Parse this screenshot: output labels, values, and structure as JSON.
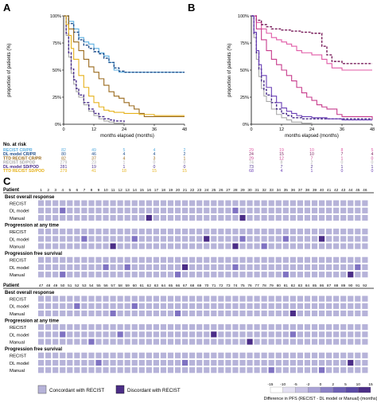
{
  "panels": {
    "A": {
      "letter": "A",
      "chart_data": {
        "type": "line",
        "ylabel": "proportion of patients (%)",
        "xlabel": "months elapsed (months)",
        "xlim": [
          0,
          48
        ],
        "ylim": [
          0,
          100
        ],
        "xticks": [
          "0",
          "12",
          "24",
          "36",
          "48"
        ],
        "yticks": [
          "0%",
          "25%",
          "50%",
          "75%",
          "100%"
        ],
        "series": [
          {
            "name": "RECIST CR/PR",
            "color": "#5aaee0",
            "dash": false,
            "x": [
              0,
              2,
              4,
              6,
              8,
              10,
              12,
              14,
              16,
              18,
              20,
              22,
              24,
              26,
              30,
              36,
              40,
              48
            ],
            "y": [
              100,
              95,
              88,
              80,
              76,
              74,
              70,
              66,
              63,
              57,
              50,
              48,
              48,
              48,
              48,
              48,
              48,
              48
            ]
          },
          {
            "name": "DL model CR/PR",
            "color": "#1f4e8c",
            "dash": true,
            "x": [
              0,
              2,
              4,
              6,
              8,
              10,
              12,
              14,
              16,
              18,
              20,
              22,
              24,
              30,
              36,
              40,
              48
            ],
            "y": [
              100,
              93,
              85,
              78,
              73,
              70,
              67,
              65,
              61,
              57,
              52,
              49,
              48,
              48,
              48,
              48,
              48
            ]
          },
          {
            "name": "TTD RECIST CR/PR",
            "color": "#9a6a1c",
            "dash": false,
            "x": [
              0,
              2,
              4,
              6,
              8,
              10,
              12,
              14,
              16,
              18,
              20,
              22,
              24,
              26,
              28,
              30,
              32,
              36,
              40,
              48
            ],
            "y": [
              100,
              88,
              76,
              68,
              60,
              53,
              48,
              42,
              36,
              30,
              26,
              24,
              20,
              17,
              14,
              10,
              7,
              7,
              7,
              7
            ]
          },
          {
            "name": "RECIST SD/PD",
            "color": "#a9a9a9",
            "dash": false,
            "x": [
              0,
              1,
              2,
              3,
              4,
              5,
              6,
              8,
              10,
              12,
              14,
              16,
              18,
              20,
              24
            ],
            "y": [
              100,
              82,
              62,
              47,
              37,
              30,
              25,
              18,
              12,
              8,
              5,
              3,
              2,
              1,
              0
            ]
          },
          {
            "name": "DL model SD/PD",
            "color": "#4a2d8a",
            "dash": true,
            "x": [
              0,
              1,
              2,
              3,
              4,
              5,
              6,
              8,
              10,
              12,
              14,
              16,
              18,
              20,
              24
            ],
            "y": [
              100,
              84,
              66,
              51,
              41,
              33,
              27,
              20,
              14,
              10,
              7,
              5,
              4,
              3,
              2
            ]
          },
          {
            "name": "TTD RECIST SD/POD",
            "color": "#e6b21c",
            "dash": false,
            "x": [
              0,
              1,
              2,
              3,
              4,
              6,
              8,
              10,
              12,
              14,
              16,
              18,
              20,
              24,
              30,
              36,
              48
            ],
            "y": [
              100,
              92,
              82,
              70,
              60,
              45,
              34,
              26,
              20,
              16,
              13,
              12,
              11,
              10,
              9,
              8,
              8
            ]
          }
        ],
        "risk_table": {
          "title": "No. at risk",
          "rows": [
            {
              "label": "RECIST CR/PR",
              "color": "#5aaee0",
              "values": [
                "82",
                "49",
                "5",
                "4",
                "2"
              ]
            },
            {
              "label": "DL model CR/PR",
              "color": "#1f4e8c",
              "values": [
                "80",
                "46",
                "4",
                "4",
                "2"
              ]
            },
            {
              "label": "TTD RECIST CR/PR",
              "color": "#9a6a1c",
              "values": [
                "82",
                "37",
                "4",
                "3",
                "1"
              ]
            },
            {
              "label": "RECIST SD/POD",
              "color": "#a9a9a9",
              "values": [
                "279",
                "23",
                "1",
                "0",
                "0"
              ]
            },
            {
              "label": "DL model SD/POD",
              "color": "#4a2d8a",
              "values": [
                "281",
                "19",
                "1",
                "0",
                "0"
              ]
            },
            {
              "label": "TTD RECIST SD/POD",
              "color": "#e6b21c",
              "values": [
                "279",
                "41",
                "18",
                "15",
                "15"
              ]
            }
          ]
        }
      }
    },
    "B": {
      "letter": "B",
      "chart_data": {
        "type": "line",
        "ylabel": "proportion of patients (%)",
        "xlabel": "months elapsed (months)",
        "xlim": [
          0,
          48
        ],
        "ylim": [
          0,
          100
        ],
        "xticks": [
          "0",
          "12",
          "24",
          "36",
          "48"
        ],
        "yticks": [
          "0%",
          "25%",
          "50%",
          "75%",
          "100%"
        ],
        "series": [
          {
            "name": "RECIST CR/PR",
            "color": "#e05aa6",
            "dash": false,
            "x": [
              0,
              2,
              4,
              6,
              8,
              10,
              12,
              14,
              16,
              18,
              20,
              24,
              28,
              30,
              32,
              36,
              40,
              48
            ],
            "y": [
              100,
              94,
              88,
              84,
              80,
              78,
              76,
              74,
              72,
              68,
              66,
              64,
              60,
              56,
              52,
              50,
              50,
              50
            ]
          },
          {
            "name": "DL model CR/PR",
            "color": "#7a1f5c",
            "dash": true,
            "x": [
              0,
              2,
              4,
              6,
              8,
              12,
              16,
              20,
              24,
              28,
              30,
              32,
              36,
              40,
              48
            ],
            "y": [
              100,
              96,
              92,
              90,
              88,
              87,
              86,
              85,
              84,
              72,
              64,
              58,
              56,
              56,
              56
            ]
          },
          {
            "name": "TTD RECIST CR/PR",
            "color": "#c73b8c",
            "dash": false,
            "x": [
              0,
              2,
              4,
              6,
              8,
              10,
              12,
              14,
              16,
              18,
              20,
              22,
              24,
              26,
              28,
              30,
              34,
              36,
              48
            ],
            "y": [
              100,
              88,
              78,
              68,
              60,
              55,
              50,
              45,
              40,
              34,
              29,
              25,
              22,
              18,
              16,
              14,
              9,
              7,
              4
            ]
          },
          {
            "name": "RECIST SD/POD",
            "color": "#a9a9a9",
            "dash": false,
            "x": [
              0,
              1,
              2,
              3,
              4,
              5,
              6,
              8,
              10,
              12,
              14,
              16,
              20,
              24
            ],
            "y": [
              100,
              80,
              60,
              44,
              33,
              26,
              21,
              14,
              9,
              6,
              4,
              2,
              1,
              0
            ]
          },
          {
            "name": "DL model SD/POD",
            "color": "#4a2d8a",
            "dash": true,
            "x": [
              0,
              1,
              2,
              3,
              4,
              5,
              6,
              8,
              10,
              12,
              14,
              16,
              20,
              24,
              30,
              36,
              48
            ],
            "y": [
              100,
              84,
              66,
              51,
              40,
              32,
              27,
              20,
              14,
              10,
              8,
              6,
              5,
              5,
              5,
              5,
              5
            ]
          },
          {
            "name": "TTD RECIST SD/POD",
            "color": "#6a3fb5",
            "dash": false,
            "x": [
              0,
              1,
              2,
              3,
              4,
              6,
              8,
              10,
              12,
              14,
              16,
              18,
              20,
              24,
              30,
              36,
              48
            ],
            "y": [
              100,
              85,
              68,
              55,
              45,
              34,
              26,
              20,
              15,
              12,
              10,
              8,
              7,
              6,
              5,
              4,
              4
            ]
          }
        ],
        "risk_table": {
          "rows": [
            {
              "label": "",
              "color": "#e05aa6",
              "values": [
                "29",
                "19",
                "10",
                "8",
                "5"
              ]
            },
            {
              "label": "",
              "color": "#7a1f5c",
              "values": [
                "24",
                "15",
                "10",
                "7",
                "4"
              ]
            },
            {
              "label": "",
              "color": "#c73b8c",
              "values": [
                "29",
                "12",
                "7",
                "1",
                "0"
              ]
            },
            {
              "label": "",
              "color": "#a9a9a9",
              "values": [
                "74",
                "8",
                "2",
                "0",
                "0"
              ]
            },
            {
              "label": "",
              "color": "#4a2d8a",
              "values": [
                "73",
                "7",
                "2",
                "1",
                "1"
              ]
            },
            {
              "label": "",
              "color": "#6a3fb5",
              "values": [
                "68",
                "4",
                "1",
                "0",
                "0"
              ]
            }
          ]
        }
      }
    },
    "C": {
      "letter": "C",
      "patient_label": "Patient",
      "row_labels": [
        "RECIST",
        "DL model",
        "Manual"
      ],
      "sections": [
        {
          "title": "Best overall response",
          "discordant": {
            "DL model": [],
            "Manual": [
              16,
              29
            ]
          },
          "concordant_extra": {
            "DL model": [
              4,
              28
            ],
            "Manual": []
          }
        },
        {
          "title": "Progression at any time",
          "discordant": {
            "DL model": [
              24,
              40
            ],
            "Manual": [
              11,
              28
            ]
          },
          "concordant_extra": {
            "DL model": [
              7,
              14,
              29,
              35
            ],
            "Manual": [
              32
            ]
          }
        },
        {
          "title": "Progression free survival",
          "discordant": {
            "DL model": [
              21
            ],
            "Manual": [
              44
            ]
          },
          "concordant_extra": {
            "DL model": [
              10,
              13,
              28,
              45
            ],
            "Manual": [
              4,
              20,
              35
            ]
          }
        }
      ],
      "block1_patients": [
        "1",
        "2",
        "3",
        "4",
        "5",
        "6",
        "7",
        "8",
        "9",
        "10",
        "11",
        "12",
        "13",
        "14",
        "15",
        "16",
        "17",
        "18",
        "19",
        "20",
        "21",
        "22",
        "23",
        "24",
        "25",
        "26",
        "27",
        "28",
        "29",
        "30",
        "31",
        "32",
        "33",
        "34",
        "35",
        "36",
        "37",
        "38",
        "39",
        "40",
        "41",
        "42",
        "43",
        "44",
        "45",
        "46"
      ],
      "block2_patients": [
        "47",
        "48",
        "49",
        "50",
        "51",
        "52",
        "53",
        "54",
        "55",
        "56",
        "57",
        "58",
        "59",
        "60",
        "61",
        "62",
        "63",
        "64",
        "65",
        "66",
        "67",
        "68",
        "69",
        "70",
        "71",
        "72",
        "73",
        "74",
        "75",
        "76",
        "77",
        "78",
        "79",
        "80",
        "81",
        "82",
        "83",
        "84",
        "85",
        "86",
        "87",
        "88",
        "89",
        "90",
        "91",
        "92"
      ],
      "block2_sections": [
        {
          "title": "Best overall response",
          "discordant": {
            "DL model": [],
            "Manual": [
              36
            ]
          },
          "concordant_extra": {
            "DL model": [
              6,
              14
            ],
            "Manual": [
              11,
              20
            ]
          }
        },
        {
          "title": "Progression at any time",
          "discordant": {
            "DL model": [
              25
            ],
            "Manual": [
              30
            ]
          },
          "concordant_extra": {
            "DL model": [
              4,
              12,
              36
            ],
            "Manual": [
              8
            ]
          }
        },
        {
          "title": "Progression free survival",
          "discordant": {
            "DL model": [
              44
            ],
            "Manual": []
          },
          "concordant_extra": {
            "DL model": [
              9,
              21
            ],
            "Manual": [
              33,
              40
            ]
          }
        }
      ],
      "legend": {
        "concordant": "Concordant with RECIST",
        "discordant": "Discordant with RECIST",
        "concordant_color": "#b6b3d9",
        "discordant_color": "#4b2d87",
        "scale_ticks": [
          "-15",
          "-10",
          "-5",
          "-2",
          "0",
          "2",
          "5",
          "10",
          "15"
        ],
        "scale_title": "Difference in PFS (RECIST - DL model or Manual) (months)"
      }
    }
  }
}
